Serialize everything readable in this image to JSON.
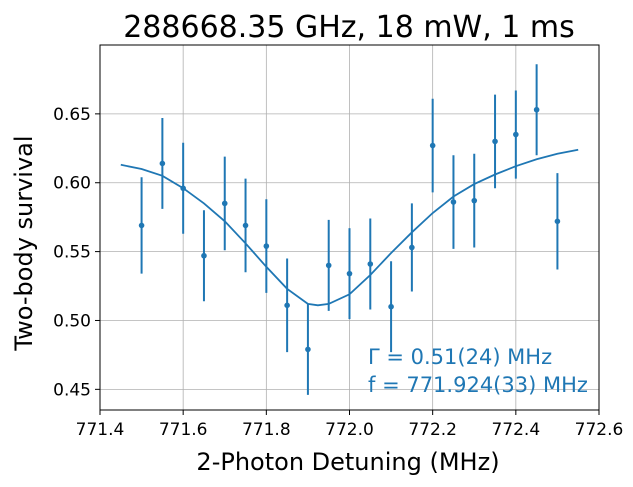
{
  "chart_data": {
    "type": "scatter",
    "title": "288668.35 GHz, 18 mW, 1 ms",
    "xlabel": "2-Photon Detuning (MHz)",
    "ylabel": "Two-body survival",
    "xlim": [
      771.4,
      772.6
    ],
    "ylim": [
      0.435,
      0.7
    ],
    "grid": true,
    "color": "#1f77b4",
    "x_ticks": [
      771.4,
      771.6,
      771.8,
      772.0,
      772.2,
      772.4,
      772.6
    ],
    "x_tick_labels": [
      "771.4",
      "771.6",
      "771.8",
      "772.0",
      "772.2",
      "772.4",
      "772.6"
    ],
    "y_ticks": [
      0.45,
      0.5,
      0.55,
      0.6,
      0.65
    ],
    "y_tick_labels": [
      "0.45",
      "0.50",
      "0.55",
      "0.60",
      "0.65"
    ],
    "points": [
      {
        "x": 771.5,
        "y": 0.569,
        "err": 0.035
      },
      {
        "x": 771.55,
        "y": 0.614,
        "err": 0.033
      },
      {
        "x": 771.6,
        "y": 0.596,
        "err": 0.033
      },
      {
        "x": 771.65,
        "y": 0.547,
        "err": 0.033
      },
      {
        "x": 771.7,
        "y": 0.585,
        "err": 0.034
      },
      {
        "x": 771.75,
        "y": 0.569,
        "err": 0.034
      },
      {
        "x": 771.8,
        "y": 0.554,
        "err": 0.034
      },
      {
        "x": 771.85,
        "y": 0.511,
        "err": 0.034
      },
      {
        "x": 771.9,
        "y": 0.479,
        "err": 0.033
      },
      {
        "x": 771.95,
        "y": 0.54,
        "err": 0.033
      },
      {
        "x": 772.0,
        "y": 0.534,
        "err": 0.033
      },
      {
        "x": 772.05,
        "y": 0.541,
        "err": 0.033
      },
      {
        "x": 772.1,
        "y": 0.51,
        "err": 0.033
      },
      {
        "x": 772.15,
        "y": 0.553,
        "err": 0.032
      },
      {
        "x": 772.2,
        "y": 0.627,
        "err": 0.034
      },
      {
        "x": 772.25,
        "y": 0.586,
        "err": 0.034
      },
      {
        "x": 772.3,
        "y": 0.587,
        "err": 0.034
      },
      {
        "x": 772.35,
        "y": 0.63,
        "err": 0.034
      },
      {
        "x": 772.4,
        "y": 0.635,
        "err": 0.032
      },
      {
        "x": 772.45,
        "y": 0.653,
        "err": 0.033
      },
      {
        "x": 772.5,
        "y": 0.572,
        "err": 0.035
      }
    ],
    "fit": {
      "x": [
        771.45,
        771.5,
        771.55,
        771.6,
        771.65,
        771.7,
        771.75,
        771.8,
        771.85,
        771.9,
        771.924,
        771.95,
        772.0,
        772.05,
        772.1,
        772.15,
        772.2,
        772.25,
        772.3,
        772.35,
        772.4,
        772.45,
        772.5,
        772.55
      ],
      "y": [
        0.613,
        0.61,
        0.605,
        0.596,
        0.585,
        0.572,
        0.556,
        0.539,
        0.523,
        0.512,
        0.511,
        0.512,
        0.519,
        0.533,
        0.549,
        0.564,
        0.578,
        0.59,
        0.599,
        0.606,
        0.612,
        0.617,
        0.621,
        0.624
      ]
    },
    "annotations": [
      {
        "text": "Γ = 0.51(24) MHz"
      },
      {
        "text": "f = 771.924(33) MHz"
      }
    ]
  }
}
